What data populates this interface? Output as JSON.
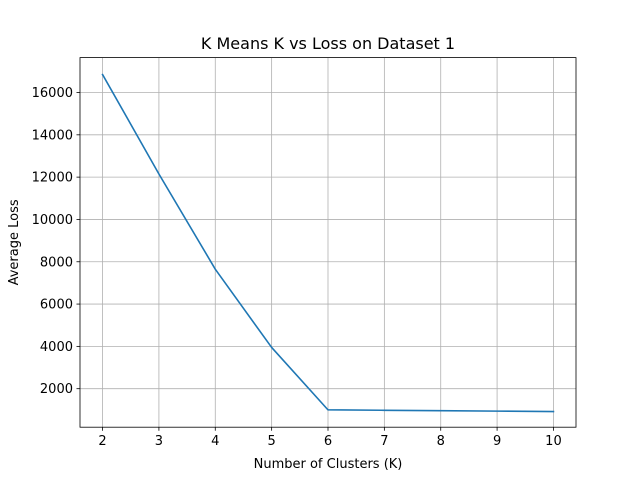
{
  "chart_data": {
    "type": "line",
    "title": "K Means K vs Loss on Dataset 1",
    "xlabel": "Number of Clusters (K)",
    "ylabel": "Average Loss",
    "x": [
      2,
      3,
      4,
      5,
      6,
      7,
      8,
      9,
      10
    ],
    "series": [
      {
        "values": [
          16850,
          12150,
          7650,
          3950,
          1000,
          980,
          960,
          940,
          920
        ],
        "color": "#1f77b4"
      }
    ],
    "xticks": [
      2,
      3,
      4,
      5,
      6,
      7,
      8,
      9,
      10
    ],
    "yticks": [
      2000,
      4000,
      6000,
      8000,
      10000,
      12000,
      14000,
      16000
    ],
    "xlim": [
      1.6,
      10.4
    ],
    "ylim": [
      180,
      17650
    ],
    "grid": true,
    "legend": "none"
  }
}
